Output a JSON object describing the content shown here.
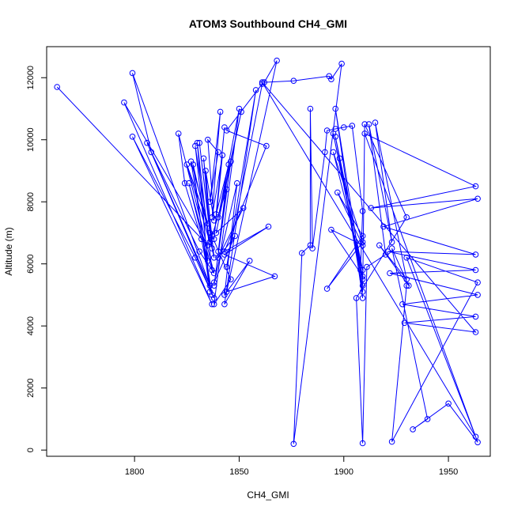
{
  "chart_data": {
    "type": "line",
    "title": "ATOM3 Southbound CH4_GMI",
    "xlabel": "CH4_GMI",
    "ylabel": "Altitude (m)",
    "xlim": [
      1758,
      1970
    ],
    "ylim": [
      -200,
      13000
    ],
    "xticks": [
      1800,
      1850,
      1900,
      1950
    ],
    "yticks": [
      0,
      2000,
      4000,
      6000,
      8000,
      10000,
      12000
    ],
    "grid": false,
    "legend": "none",
    "line_color": "#0000ff",
    "series": [
      {
        "x": [
          1763,
          1835,
          1795,
          1837,
          1799,
          1829,
          1838,
          1806,
          1836,
          1799,
          1808,
          1831,
          1838,
          1821,
          1824,
          1832,
          1837,
          1827,
          1835,
          1825,
          1836,
          1829,
          1835,
          1826,
          1837,
          1830,
          1836,
          1828,
          1838,
          1833,
          1836,
          1831,
          1837,
          1834,
          1838,
          1835,
          1840,
          1836,
          1841,
          1837,
          1842,
          1838,
          1843,
          1839,
          1845,
          1840,
          1846,
          1838,
          1844,
          1837,
          1846,
          1838,
          1850,
          1840,
          1851,
          1839,
          1852,
          1840,
          1848,
          1838,
          1849,
          1843,
          1855,
          1843,
          1858,
          1844,
          1861,
          1844,
          1863,
          1843,
          1864,
          1843,
          1867,
          1844,
          1868,
          1862,
          1876,
          1893,
          1894,
          1899,
          1876,
          1880,
          1884,
          1884,
          1885,
          1891,
          1892,
          1896,
          1900,
          1904,
          1909,
          1908,
          1909,
          1896,
          1909,
          1895,
          1909,
          1894,
          1909,
          1897,
          1909,
          1892,
          1909,
          1895,
          1909,
          1896,
          1909,
          1898,
          1909,
          1910,
          1930,
          1906,
          1909,
          1911,
          1920,
          1912,
          1923,
          1915,
          1930,
          1917,
          1931,
          1923,
          1940,
          1933,
          1950,
          1964,
          1910,
          1963,
          1913,
          1964,
          1919,
          1963,
          1921,
          1963,
          1922,
          1964,
          1928,
          1963,
          1929,
          1963,
          1861,
          1963,
          1930,
          1964,
          1923,
          1930
        ],
        "y": [
          11700,
          6600,
          11200,
          4700,
          10100,
          6200,
          4900,
          9900,
          5300,
          12150,
          9600,
          6400,
          5700,
          10200,
          8600,
          6800,
          5000,
          9300,
          7300,
          9200,
          6700,
          9800,
          6100,
          8600,
          5800,
          9900,
          5100,
          9200,
          6200,
          9400,
          7000,
          9900,
          6500,
          9000,
          7400,
          10000,
          9600,
          8000,
          10900,
          7500,
          9500,
          6800,
          10400,
          7600,
          9200,
          6400,
          9300,
          5300,
          8400,
          6900,
          5500,
          4700,
          11000,
          7500,
          10900,
          7000,
          7800,
          6200,
          6900,
          5400,
          8600,
          5000,
          6100,
          4700,
          11600,
          5900,
          11800,
          10300,
          9800,
          6400,
          7200,
          6300,
          5600,
          5100,
          12550,
          11850,
          11900,
          12050,
          11950,
          12450,
          200,
          6350,
          6600,
          11000,
          6500,
          9600,
          10300,
          10350,
          10400,
          10450,
          7700,
          5800,
          4900,
          11000,
          5500,
          10200,
          5600,
          7100,
          6600,
          8300,
          6900,
          5200,
          6700,
          9600,
          5800,
          10100,
          5300,
          9400,
          5100,
          10500,
          7500,
          4900,
          220,
          5900,
          6300,
          10500,
          6700,
          10550,
          5500,
          6600,
          5300,
          6500,
          1000,
          670,
          1500,
          250,
          10200,
          8500,
          7800,
          8100,
          7200,
          6300,
          6400,
          5800,
          5700,
          5000,
          4700,
          4300,
          4100,
          3800,
          11850,
          430,
          6200,
          5400,
          270,
          5300
        ]
      }
    ]
  }
}
